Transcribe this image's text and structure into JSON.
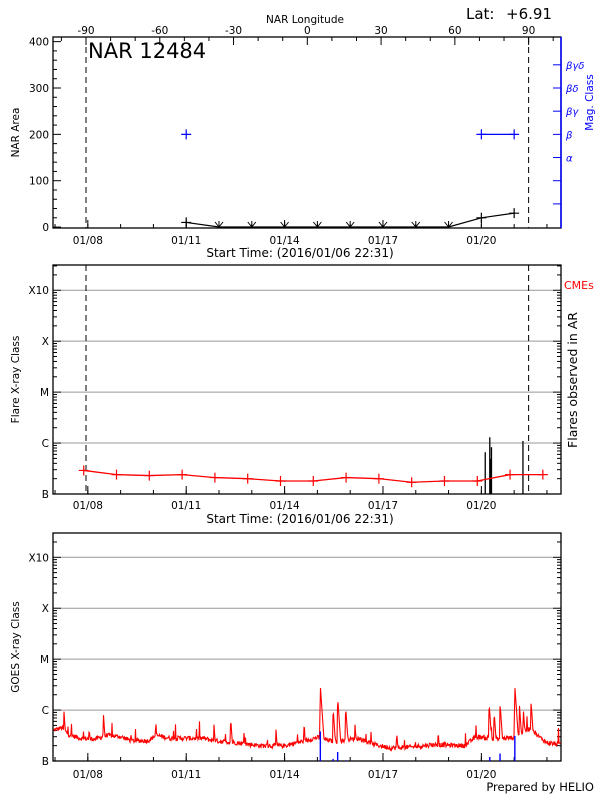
{
  "chart_data": [
    {
      "type": "scatter",
      "title": "NAR 12484",
      "lat_label": "Lat:",
      "lat_value": "+6.91",
      "x_range": [
        "2016-01-06T22:31",
        "2016-01-22T10:17"
      ],
      "xlabel": "Start Time: (2016/01/06 22:31)",
      "xticks": [
        {
          "label": "01/08",
          "time": "2016-01-08T00:00"
        },
        {
          "label": "01/11",
          "time": "2016-01-11T00:00"
        },
        {
          "label": "01/14",
          "time": "2016-01-14T00:00"
        },
        {
          "label": "01/17",
          "time": "2016-01-17T00:00"
        },
        {
          "label": "01/20",
          "time": "2016-01-20T00:00"
        }
      ],
      "top_axis": {
        "label": "NAR Longitude",
        "ticks": [
          -90,
          -60,
          -30,
          0,
          30,
          60,
          90
        ]
      },
      "limb_crossings": [
        {
          "longitude": -90,
          "time": "2016-01-07T22:40"
        },
        {
          "longitude": 90,
          "time": "2016-01-21T10:35"
        }
      ],
      "ylabel": "NAR Area",
      "ylim": [
        -2,
        410
      ],
      "yticks": [
        0,
        100,
        200,
        300,
        400
      ],
      "series": [
        {
          "points": [
            {
              "time": "2016-01-11T00:00",
              "value": 10
            },
            {
              "time": "2016-01-12T00:00",
              "value": 0
            },
            {
              "time": "2016-01-13T00:00",
              "value": 0
            },
            {
              "time": "2016-01-14T00:00",
              "value": 0
            },
            {
              "time": "2016-01-15T00:00",
              "value": 0
            },
            {
              "time": "2016-01-16T00:00",
              "value": 0
            },
            {
              "time": "2016-01-17T00:00",
              "value": 0
            },
            {
              "time": "2016-01-18T00:00",
              "value": 0
            },
            {
              "time": "2016-01-19T00:00",
              "value": 0
            },
            {
              "time": "2016-01-20T00:00",
              "value": 20
            },
            {
              "time": "2016-01-21T00:00",
              "value": 30
            }
          ],
          "color": "#000000"
        }
      ],
      "right_axis": {
        "label": "Mag. Class",
        "color": "#0000ff",
        "levels": [
          "",
          "",
          "α",
          "β",
          "βγ",
          "βδ",
          "βγδ"
        ]
      },
      "mag_class": [
        {
          "time": "2016-01-11T00:00",
          "class": "β"
        },
        {
          "time": "2016-01-20T00:00",
          "class": "β"
        },
        {
          "time": "2016-01-21T00:00",
          "class": "β"
        }
      ]
    },
    {
      "type": "line",
      "x_range": [
        "2016-01-06T22:31",
        "2016-01-22T10:17"
      ],
      "xlabel": "Start Time: (2016/01/06 22:31)",
      "xticks": [
        {
          "label": "01/08",
          "time": "2016-01-08T00:00"
        },
        {
          "label": "01/11",
          "time": "2016-01-11T00:00"
        },
        {
          "label": "01/14",
          "time": "2016-01-14T00:00"
        },
        {
          "label": "01/17",
          "time": "2016-01-17T00:00"
        },
        {
          "label": "01/20",
          "time": "2016-01-20T00:00"
        }
      ],
      "ylabel": "Flare X-ray Class",
      "yscale": "log",
      "ylim": [
        1e-07,
        0.00313
      ],
      "yticks": [
        {
          "label": "B",
          "value": 1e-07
        },
        {
          "label": "C",
          "value": 1e-06
        },
        {
          "label": "M",
          "value": 1e-05
        },
        {
          "label": "X",
          "value": 0.0001
        },
        {
          "label": "X10",
          "value": 0.001
        }
      ],
      "grid": true,
      "limb_crossings": [
        "2016-01-07T22:40",
        "2016-01-21T10:35"
      ],
      "series": [
        {
          "color": "#ff0000",
          "points": [
            {
              "time": "2016-01-07T21:00",
              "value": 2.9e-07
            },
            {
              "time": "2016-01-08T21:00",
              "value": 2.4e-07
            },
            {
              "time": "2016-01-09T21:00",
              "value": 2.3e-07
            },
            {
              "time": "2016-01-10T21:00",
              "value": 2.4e-07
            },
            {
              "time": "2016-01-11T21:00",
              "value": 2.1e-07
            },
            {
              "time": "2016-01-12T21:00",
              "value": 2e-07
            },
            {
              "time": "2016-01-13T21:00",
              "value": 1.8e-07
            },
            {
              "time": "2016-01-14T21:00",
              "value": 1.8e-07
            },
            {
              "time": "2016-01-15T21:00",
              "value": 2.1e-07
            },
            {
              "time": "2016-01-16T21:00",
              "value": 2e-07
            },
            {
              "time": "2016-01-17T21:00",
              "value": 1.7e-07
            },
            {
              "time": "2016-01-18T21:00",
              "value": 1.8e-07
            },
            {
              "time": "2016-01-19T21:00",
              "value": 1.8e-07
            },
            {
              "time": "2016-01-20T21:00",
              "value": 2.4e-07
            },
            {
              "time": "2016-01-21T21:00",
              "value": 2.4e-07
            }
          ]
        }
      ],
      "flares": {
        "color": "#000000",
        "events": [
          {
            "time": "2016-01-20T02:50",
            "value": 6.6e-07
          },
          {
            "time": "2016-01-20T06:10",
            "value": 1.3e-06
          },
          {
            "time": "2016-01-20T06:50",
            "value": 4.9e-07
          },
          {
            "time": "2016-01-20T07:24",
            "value": 8.3e-07
          },
          {
            "time": "2016-01-21T06:26",
            "value": 1.1e-06
          }
        ]
      },
      "cme_label": "CMEs",
      "cme_color": "#ff0000",
      "right_label": "Flares observed in AR"
    },
    {
      "type": "line",
      "x_range": [
        "2016-01-06T22:31",
        "2016-01-22T10:17"
      ],
      "xticks": [
        {
          "label": "01/08",
          "time": "2016-01-08T00:00"
        },
        {
          "label": "01/11",
          "time": "2016-01-11T00:00"
        },
        {
          "label": "01/14",
          "time": "2016-01-14T00:00"
        },
        {
          "label": "01/17",
          "time": "2016-01-17T00:00"
        },
        {
          "label": "01/20",
          "time": "2016-01-20T00:00"
        }
      ],
      "ylabel": "GOES X-ray Class",
      "yscale": "log",
      "ylim": [
        1e-07,
        0.003
      ],
      "yticks": [
        {
          "label": "B",
          "value": 1e-07
        },
        {
          "label": "C",
          "value": 1e-06
        },
        {
          "label": "M",
          "value": 1e-05
        },
        {
          "label": "X",
          "value": 0.0001
        },
        {
          "label": "X10",
          "value": 0.001
        }
      ],
      "grid": true,
      "flux_color": "#ff0000",
      "background_flux": [
        {
          "time": "2016-01-06T22:31",
          "value": 4e-07
        },
        {
          "time": "2016-01-07T05:00",
          "value": 4.5e-07
        },
        {
          "time": "2016-01-07T10:00",
          "value": 3.3e-07
        },
        {
          "time": "2016-01-07T18:00",
          "value": 2.8e-07
        },
        {
          "time": "2016-01-08T06:00",
          "value": 2.7e-07
        },
        {
          "time": "2016-01-08T14:00",
          "value": 3.2e-07
        },
        {
          "time": "2016-01-09T00:00",
          "value": 3e-07
        },
        {
          "time": "2016-01-09T08:00",
          "value": 2.5e-07
        },
        {
          "time": "2016-01-09T20:00",
          "value": 2.5e-07
        },
        {
          "time": "2016-01-10T02:00",
          "value": 3.2e-07
        },
        {
          "time": "2016-01-10T12:00",
          "value": 2.8e-07
        },
        {
          "time": "2016-01-11T12:00",
          "value": 2.8e-07
        },
        {
          "time": "2016-01-11T20:00",
          "value": 2.5e-07
        },
        {
          "time": "2016-01-12T12:00",
          "value": 2.3e-07
        },
        {
          "time": "2016-01-13T06:00",
          "value": 2e-07
        },
        {
          "time": "2016-01-14T00:00",
          "value": 2e-07
        },
        {
          "time": "2016-01-14T12:00",
          "value": 2.4e-07
        },
        {
          "time": "2016-01-15T00:00",
          "value": 2.9e-07
        },
        {
          "time": "2016-01-15T12:00",
          "value": 2.4e-07
        },
        {
          "time": "2016-01-16T06:00",
          "value": 2.8e-07
        },
        {
          "time": "2016-01-16T18:00",
          "value": 2.1e-07
        },
        {
          "time": "2016-01-17T06:00",
          "value": 1.8e-07
        },
        {
          "time": "2016-01-18T00:00",
          "value": 1.9e-07
        },
        {
          "time": "2016-01-18T12:00",
          "value": 2.1e-07
        },
        {
          "time": "2016-01-19T12:00",
          "value": 2e-07
        },
        {
          "time": "2016-01-19T20:00",
          "value": 3e-07
        },
        {
          "time": "2016-01-20T12:00",
          "value": 2.7e-07
        },
        {
          "time": "2016-01-21T00:00",
          "value": 2.9e-07
        },
        {
          "time": "2016-01-21T12:00",
          "value": 4.5e-07
        },
        {
          "time": "2016-01-21T18:00",
          "value": 3e-07
        },
        {
          "time": "2016-01-22T00:00",
          "value": 2.3e-07
        },
        {
          "time": "2016-01-22T10:17",
          "value": 2.1e-07
        }
      ],
      "flux_peaks": [
        {
          "time": "2016-01-07T06:26",
          "value": 1.05e-06
        },
        {
          "time": "2016-01-08T00:55",
          "value": 4.7e-07
        },
        {
          "time": "2016-01-08T11:20",
          "value": 9e-07
        },
        {
          "time": "2016-01-10T01:30",
          "value": 4.3e-07
        },
        {
          "time": "2016-01-11T20:20",
          "value": 5.2e-07
        },
        {
          "time": "2016-01-12T08:30",
          "value": 7.2e-07
        },
        {
          "time": "2016-01-13T17:40",
          "value": 4.3e-07
        },
        {
          "time": "2016-01-14T09:20",
          "value": 3.7e-07
        },
        {
          "time": "2016-01-15T02:10",
          "value": 3e-06
        },
        {
          "time": "2016-01-15T11:30",
          "value": 1.1e-06
        },
        {
          "time": "2016-01-15T14:50",
          "value": 1.8e-06
        },
        {
          "time": "2016-01-15T20:40",
          "value": 1.2e-06
        },
        {
          "time": "2016-01-16T03:30",
          "value": 5.3e-07
        },
        {
          "time": "2016-01-17T10:00",
          "value": 4e-07
        },
        {
          "time": "2016-01-18T16:20",
          "value": 4.1e-07
        },
        {
          "time": "2016-01-20T05:40",
          "value": 1.4e-06
        },
        {
          "time": "2016-01-20T09:20",
          "value": 9.5e-07
        },
        {
          "time": "2016-01-20T13:40",
          "value": 1.4e-06
        },
        {
          "time": "2016-01-21T00:30",
          "value": 3e-06
        },
        {
          "time": "2016-01-21T03:50",
          "value": 1.3e-06
        },
        {
          "time": "2016-01-21T06:40",
          "value": 1.1e-06
        },
        {
          "time": "2016-01-21T12:20",
          "value": 1.5e-06
        }
      ],
      "events": {
        "color": "#0000ff",
        "items": [
          {
            "time": "2016-01-15T02:10",
            "value": 3.8e-07
          },
          {
            "time": "2016-01-15T11:30",
            "value": 1.1e-07
          },
          {
            "time": "2016-01-15T14:50",
            "value": 1.5e-07
          },
          {
            "time": "2016-01-15T21:10",
            "value": 1.03e-07
          },
          {
            "time": "2016-01-20T06:10",
            "value": 1.2e-07
          },
          {
            "time": "2016-01-20T13:40",
            "value": 1.4e-07
          },
          {
            "time": "2016-01-21T00:30",
            "value": 3.1e-07
          }
        ]
      },
      "footer": "Prepared by HELIO"
    }
  ]
}
